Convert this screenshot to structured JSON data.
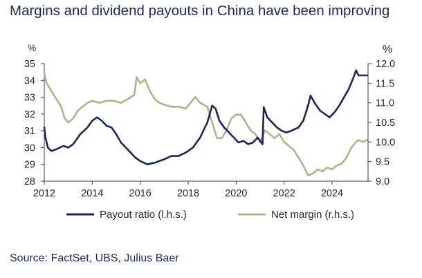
{
  "title": "Margins and dividend payouts in China have been improving",
  "source": "Source: FactSet, UBS, Julius Baer",
  "chart_data": {
    "type": "line",
    "left_axis": {
      "unit": "%",
      "range": [
        28,
        35
      ],
      "ticks": [
        "35",
        "34",
        "33",
        "32",
        "31",
        "30",
        "29",
        "28"
      ]
    },
    "right_axis": {
      "unit": "%",
      "range": [
        9.0,
        12.0
      ],
      "ticks": [
        "12.0",
        "11.5",
        "11.0",
        "10.5",
        "10.0",
        "9.5",
        "9.0"
      ]
    },
    "x_axis": {
      "range": [
        2012,
        2025.5
      ],
      "ticks": [
        "2012",
        "2014",
        "2016",
        "2018",
        "2020",
        "2022",
        "2024"
      ]
    },
    "grid": false,
    "legend_position": "bottom",
    "colors": {
      "payout": "#1b2556",
      "margin": "#b5ae8c"
    },
    "series": [
      {
        "name": "Payout ratio (l.h.s.)",
        "axis": "left",
        "points": [
          [
            2012.0,
            31.2
          ],
          [
            2012.05,
            30.6
          ],
          [
            2012.15,
            30.0
          ],
          [
            2012.3,
            29.8
          ],
          [
            2012.5,
            29.9
          ],
          [
            2012.8,
            30.1
          ],
          [
            2013.0,
            30.0
          ],
          [
            2013.2,
            30.2
          ],
          [
            2013.5,
            30.8
          ],
          [
            2013.8,
            31.2
          ],
          [
            2014.0,
            31.6
          ],
          [
            2014.2,
            31.8
          ],
          [
            2014.4,
            31.6
          ],
          [
            2014.6,
            31.3
          ],
          [
            2014.8,
            31.2
          ],
          [
            2015.0,
            30.8
          ],
          [
            2015.2,
            30.3
          ],
          [
            2015.4,
            30.0
          ],
          [
            2015.6,
            29.7
          ],
          [
            2015.8,
            29.4
          ],
          [
            2016.0,
            29.2
          ],
          [
            2016.3,
            29.0
          ],
          [
            2016.6,
            29.1
          ],
          [
            2017.0,
            29.3
          ],
          [
            2017.3,
            29.5
          ],
          [
            2017.6,
            29.5
          ],
          [
            2017.9,
            29.7
          ],
          [
            2018.2,
            30.0
          ],
          [
            2018.5,
            30.6
          ],
          [
            2018.8,
            31.5
          ],
          [
            2019.0,
            32.5
          ],
          [
            2019.15,
            32.3
          ],
          [
            2019.3,
            31.6
          ],
          [
            2019.5,
            31.2
          ],
          [
            2019.7,
            30.9
          ],
          [
            2019.9,
            30.6
          ],
          [
            2020.1,
            30.3
          ],
          [
            2020.3,
            30.4
          ],
          [
            2020.5,
            30.2
          ],
          [
            2020.7,
            30.3
          ],
          [
            2020.9,
            30.6
          ],
          [
            2021.1,
            30.2
          ],
          [
            2021.15,
            32.4
          ],
          [
            2021.3,
            31.8
          ],
          [
            2021.5,
            31.5
          ],
          [
            2021.7,
            31.2
          ],
          [
            2021.9,
            31.0
          ],
          [
            2022.1,
            30.9
          ],
          [
            2022.3,
            31.0
          ],
          [
            2022.6,
            31.2
          ],
          [
            2022.8,
            31.6
          ],
          [
            2023.0,
            32.5
          ],
          [
            2023.1,
            33.1
          ],
          [
            2023.3,
            32.6
          ],
          [
            2023.5,
            32.2
          ],
          [
            2023.7,
            32.0
          ],
          [
            2023.9,
            31.8
          ],
          [
            2024.1,
            32.1
          ],
          [
            2024.3,
            32.5
          ],
          [
            2024.5,
            33.0
          ],
          [
            2024.7,
            33.5
          ],
          [
            2024.9,
            34.2
          ],
          [
            2025.0,
            34.6
          ],
          [
            2025.1,
            34.3
          ],
          [
            2025.3,
            34.3
          ],
          [
            2025.45,
            34.3
          ]
        ]
      },
      {
        "name": "Net margin (r.h.s.)",
        "axis": "right",
        "points": [
          [
            2012.0,
            11.75
          ],
          [
            2012.1,
            11.5
          ],
          [
            2012.3,
            11.3
          ],
          [
            2012.5,
            11.1
          ],
          [
            2012.7,
            10.9
          ],
          [
            2012.85,
            10.6
          ],
          [
            2013.0,
            10.5
          ],
          [
            2013.2,
            10.6
          ],
          [
            2013.4,
            10.8
          ],
          [
            2013.6,
            10.9
          ],
          [
            2013.8,
            11.0
          ],
          [
            2014.0,
            11.05
          ],
          [
            2014.3,
            11.0
          ],
          [
            2014.6,
            11.05
          ],
          [
            2014.9,
            11.05
          ],
          [
            2015.2,
            11.0
          ],
          [
            2015.5,
            11.1
          ],
          [
            2015.75,
            11.2
          ],
          [
            2015.85,
            11.65
          ],
          [
            2016.0,
            11.5
          ],
          [
            2016.2,
            11.6
          ],
          [
            2016.4,
            11.3
          ],
          [
            2016.6,
            11.1
          ],
          [
            2016.8,
            11.0
          ],
          [
            2017.0,
            10.95
          ],
          [
            2017.3,
            10.9
          ],
          [
            2017.6,
            10.9
          ],
          [
            2017.9,
            10.85
          ],
          [
            2018.1,
            11.0
          ],
          [
            2018.3,
            11.15
          ],
          [
            2018.5,
            11.0
          ],
          [
            2018.8,
            10.9
          ],
          [
            2019.0,
            10.5
          ],
          [
            2019.2,
            10.1
          ],
          [
            2019.4,
            10.1
          ],
          [
            2019.6,
            10.3
          ],
          [
            2019.8,
            10.6
          ],
          [
            2020.0,
            10.7
          ],
          [
            2020.2,
            10.7
          ],
          [
            2020.4,
            10.5
          ],
          [
            2020.6,
            10.3
          ],
          [
            2020.8,
            10.2
          ],
          [
            2021.0,
            10.0
          ],
          [
            2021.2,
            10.3
          ],
          [
            2021.4,
            10.2
          ],
          [
            2021.6,
            10.1
          ],
          [
            2021.8,
            10.2
          ],
          [
            2022.0,
            10.0
          ],
          [
            2022.2,
            9.9
          ],
          [
            2022.4,
            9.8
          ],
          [
            2022.6,
            9.6
          ],
          [
            2022.8,
            9.4
          ],
          [
            2023.0,
            9.15
          ],
          [
            2023.2,
            9.2
          ],
          [
            2023.4,
            9.3
          ],
          [
            2023.6,
            9.25
          ],
          [
            2023.8,
            9.35
          ],
          [
            2024.0,
            9.3
          ],
          [
            2024.2,
            9.4
          ],
          [
            2024.4,
            9.45
          ],
          [
            2024.6,
            9.6
          ],
          [
            2024.8,
            9.85
          ],
          [
            2025.0,
            10.0
          ],
          [
            2025.1,
            10.05
          ],
          [
            2025.3,
            10.0
          ],
          [
            2025.45,
            10.05
          ]
        ]
      }
    ]
  }
}
